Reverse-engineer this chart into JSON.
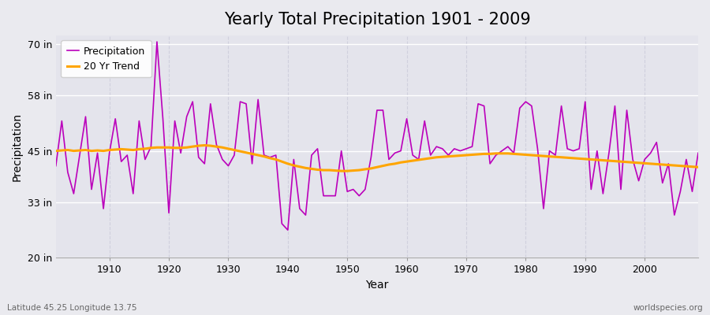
{
  "title": "Yearly Total Precipitation 1901 - 2009",
  "xlabel": "Year",
  "ylabel": "Precipitation",
  "lat_lon_label": "Latitude 45.25 Longitude 13.75",
  "watermark": "worldspecies.org",
  "years": [
    1901,
    1902,
    1903,
    1904,
    1905,
    1906,
    1907,
    1908,
    1909,
    1910,
    1911,
    1912,
    1913,
    1914,
    1915,
    1916,
    1917,
    1918,
    1919,
    1920,
    1921,
    1922,
    1923,
    1924,
    1925,
    1926,
    1927,
    1928,
    1929,
    1930,
    1931,
    1932,
    1933,
    1934,
    1935,
    1936,
    1937,
    1938,
    1939,
    1940,
    1941,
    1942,
    1943,
    1944,
    1945,
    1946,
    1947,
    1948,
    1949,
    1950,
    1951,
    1952,
    1953,
    1954,
    1955,
    1956,
    1957,
    1958,
    1959,
    1960,
    1961,
    1962,
    1963,
    1964,
    1965,
    1966,
    1967,
    1968,
    1969,
    1970,
    1971,
    1972,
    1973,
    1974,
    1975,
    1976,
    1977,
    1978,
    1979,
    1980,
    1981,
    1982,
    1983,
    1984,
    1985,
    1986,
    1987,
    1988,
    1989,
    1990,
    1991,
    1992,
    1993,
    1994,
    1995,
    1996,
    1997,
    1998,
    1999,
    2000,
    2001,
    2002,
    2003,
    2004,
    2005,
    2006,
    2007,
    2008,
    2009
  ],
  "precip_in": [
    41.5,
    52.0,
    40.0,
    35.0,
    44.0,
    53.0,
    36.0,
    44.5,
    31.5,
    44.5,
    52.5,
    42.5,
    44.0,
    35.0,
    52.0,
    43.0,
    46.0,
    70.5,
    52.5,
    30.5,
    52.0,
    44.5,
    53.0,
    56.5,
    43.5,
    42.0,
    56.0,
    46.5,
    43.0,
    41.5,
    44.0,
    56.5,
    56.0,
    42.0,
    57.0,
    44.0,
    43.5,
    44.0,
    28.0,
    26.5,
    43.0,
    31.5,
    30.0,
    44.0,
    45.5,
    34.5,
    34.5,
    34.5,
    45.0,
    35.5,
    36.0,
    34.5,
    36.0,
    43.5,
    54.5,
    54.5,
    43.0,
    44.5,
    45.0,
    52.5,
    44.0,
    43.0,
    52.0,
    44.0,
    46.0,
    45.5,
    44.0,
    45.5,
    45.0,
    45.5,
    46.0,
    56.0,
    55.5,
    42.0,
    44.0,
    45.0,
    46.0,
    44.5,
    55.0,
    56.5,
    55.5,
    45.5,
    31.5,
    45.0,
    44.0,
    55.5,
    45.5,
    45.0,
    45.5,
    56.5,
    36.0,
    45.0,
    35.0,
    44.5,
    55.5,
    36.0,
    54.5,
    43.0,
    38.0,
    43.0,
    44.5,
    47.0,
    37.5,
    42.0,
    30.0,
    35.5,
    43.0,
    35.5,
    44.5
  ],
  "trend_years": [
    1901,
    1902,
    1903,
    1904,
    1905,
    1906,
    1907,
    1908,
    1909,
    1910,
    1911,
    1912,
    1913,
    1914,
    1915,
    1916,
    1917,
    1918,
    1919,
    1920,
    1921,
    1922,
    1923,
    1924,
    1925,
    1926,
    1927,
    1928,
    1929,
    1930,
    1931,
    1932,
    1933,
    1934,
    1935,
    1936,
    1937,
    1938,
    1939,
    1940,
    1941,
    1942,
    1943,
    1944,
    1945,
    1946,
    1947,
    1948,
    1949,
    1950,
    1951,
    1952,
    1953,
    1954,
    1955,
    1956,
    1957,
    1958,
    1959,
    1960,
    1961,
    1962,
    1963,
    1964,
    1965,
    1966,
    1967,
    1968,
    1969,
    1970,
    1971,
    1972,
    1973,
    1974,
    1975,
    1976,
    1977,
    1978,
    1979,
    1980,
    1981,
    1982,
    1983,
    1984,
    1985,
    1986,
    1987,
    1988,
    1989,
    1990,
    1991,
    1992,
    1993,
    1994,
    1995,
    1996,
    1997,
    1998,
    1999,
    2000,
    2001,
    2002,
    2003,
    2004,
    2005,
    2006,
    2007,
    2008,
    2009
  ],
  "trend_in": [
    45.0,
    45.1,
    45.2,
    45.0,
    45.1,
    45.2,
    45.0,
    45.1,
    45.0,
    45.2,
    45.3,
    45.4,
    45.3,
    45.2,
    45.4,
    45.5,
    45.7,
    45.8,
    45.8,
    45.8,
    45.7,
    45.7,
    45.8,
    46.0,
    46.2,
    46.3,
    46.2,
    46.0,
    45.8,
    45.5,
    45.2,
    44.9,
    44.6,
    44.3,
    44.0,
    43.7,
    43.3,
    43.0,
    42.5,
    42.0,
    41.6,
    41.3,
    41.0,
    40.8,
    40.6,
    40.5,
    40.5,
    40.4,
    40.3,
    40.3,
    40.4,
    40.5,
    40.7,
    40.9,
    41.2,
    41.5,
    41.8,
    42.0,
    42.3,
    42.5,
    42.7,
    42.9,
    43.1,
    43.3,
    43.5,
    43.6,
    43.7,
    43.8,
    43.9,
    44.0,
    44.1,
    44.2,
    44.3,
    44.3,
    44.4,
    44.4,
    44.4,
    44.3,
    44.2,
    44.1,
    44.0,
    43.9,
    43.8,
    43.7,
    43.6,
    43.5,
    43.4,
    43.3,
    43.2,
    43.1,
    43.0,
    42.9,
    42.8,
    42.7,
    42.6,
    42.5,
    42.4,
    42.3,
    42.2,
    42.1,
    42.0,
    41.9,
    41.8,
    41.7,
    41.6,
    41.5,
    41.4,
    41.3,
    41.2
  ],
  "precip_color": "#BB00BB",
  "trend_color": "#FFA500",
  "bg_color": "#EAEAEF",
  "plot_bg_color": "#E4E4EC",
  "grid_color_h": "#FFFFFF",
  "grid_color_v": "#D0D0DD",
  "ylim": [
    20,
    72
  ],
  "yticks": [
    20,
    33,
    45,
    58,
    70
  ],
  "ytick_labels": [
    "20 in",
    "33 in",
    "45 in",
    "58 in",
    "70 in"
  ],
  "xlim": [
    1901,
    2009
  ],
  "xticks": [
    1910,
    1920,
    1930,
    1940,
    1950,
    1960,
    1970,
    1980,
    1990,
    2000
  ],
  "title_fontsize": 15,
  "axis_label_fontsize": 10,
  "tick_fontsize": 9,
  "legend_fontsize": 9
}
